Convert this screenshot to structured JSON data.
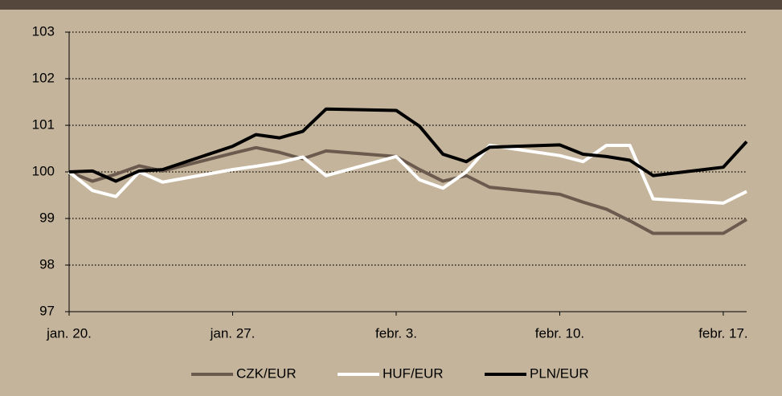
{
  "chart_data": {
    "type": "line",
    "x": [
      0,
      1,
      2,
      3,
      4,
      7,
      8,
      9,
      10,
      11,
      14,
      15,
      16,
      17,
      18,
      21,
      22,
      23,
      24,
      25,
      28,
      29
    ],
    "xlim": [
      0,
      29
    ],
    "xticks": [
      {
        "value": 0,
        "label": "jan. 20."
      },
      {
        "value": 7,
        "label": "jan. 27."
      },
      {
        "value": 14,
        "label": "febr. 3."
      },
      {
        "value": 21,
        "label": "febr. 10."
      },
      {
        "value": 28,
        "label": "febr. 17."
      }
    ],
    "ylim": [
      97,
      103
    ],
    "yticks": [
      97,
      98,
      99,
      100,
      101,
      102,
      103
    ],
    "grid": true,
    "legend": "bottom",
    "series": [
      {
        "name": "CZK/EUR",
        "color": "#6b5a4e",
        "values": [
          100.0,
          99.8,
          99.95,
          100.13,
          100.02,
          100.4,
          100.52,
          100.42,
          100.28,
          100.45,
          100.33,
          100.05,
          99.8,
          99.92,
          99.67,
          99.52,
          99.35,
          99.2,
          98.95,
          98.68,
          98.68,
          98.98
        ]
      },
      {
        "name": "HUF/EUR",
        "color": "#ffffff",
        "values": [
          100.0,
          99.6,
          99.47,
          100.0,
          99.78,
          100.05,
          100.12,
          100.2,
          100.32,
          99.92,
          100.33,
          99.83,
          99.65,
          100.0,
          100.57,
          100.35,
          100.22,
          100.57,
          100.57,
          99.42,
          99.33,
          99.58
        ]
      },
      {
        "name": "PLN/EUR",
        "color": "#000000",
        "values": [
          100.0,
          100.02,
          99.8,
          100.02,
          100.05,
          100.55,
          100.8,
          100.73,
          100.87,
          101.35,
          101.32,
          100.98,
          100.38,
          100.22,
          100.53,
          100.58,
          100.38,
          100.33,
          100.25,
          99.92,
          100.1,
          100.65
        ]
      }
    ]
  }
}
